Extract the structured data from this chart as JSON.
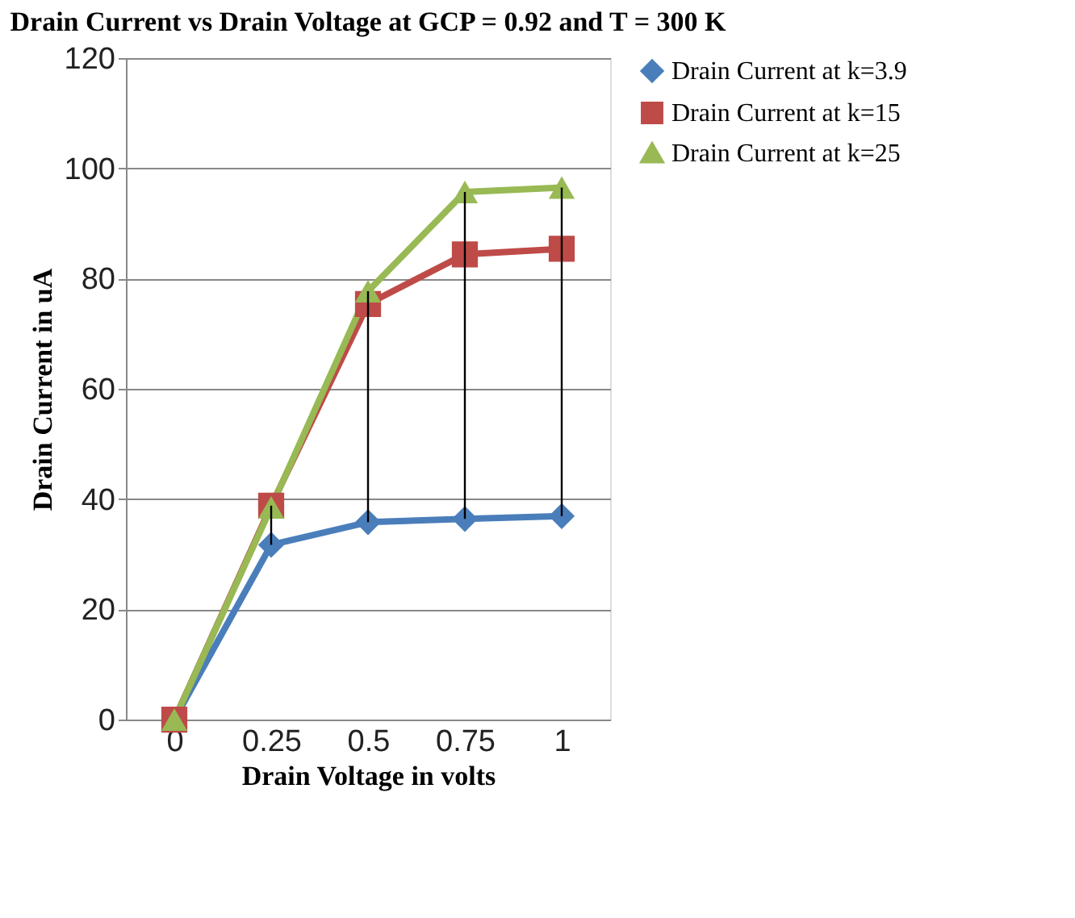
{
  "chart_data": {
    "type": "line",
    "title": "Drain Current vs Drain Voltage at GCP = 0.92 and T = 300 K",
    "xlabel": "Drain Voltage in volts",
    "ylabel": "Drain Current in uA",
    "categories": [
      "0",
      "0.25",
      "0.5",
      "0.75",
      "1"
    ],
    "series": [
      {
        "name": "Drain Current at k=3.9",
        "color": "#4a7ebb",
        "marker": "diamond",
        "values": [
          0,
          31.7,
          35.8,
          36.4,
          36.9
        ],
        "errors": [
          null,
          [
            31.7,
            38.8
          ],
          [
            35.8,
            77.7
          ],
          [
            36.4,
            95.7
          ],
          [
            36.9,
            96.5
          ]
        ]
      },
      {
        "name": "Drain Current at k=15",
        "color": "#be4b48",
        "marker": "square",
        "values": [
          0,
          38.8,
          75.4,
          84.4,
          85.4
        ]
      },
      {
        "name": "Drain Current at k=25",
        "color": "#98b954",
        "marker": "triangle",
        "values": [
          0,
          38.5,
          77.7,
          95.7,
          96.5
        ]
      }
    ],
    "ylim": [
      0,
      120
    ],
    "yticks": [
      0,
      20,
      40,
      60,
      80,
      100,
      120
    ],
    "grid": "y",
    "legend": "right",
    "line_style": "solid"
  }
}
